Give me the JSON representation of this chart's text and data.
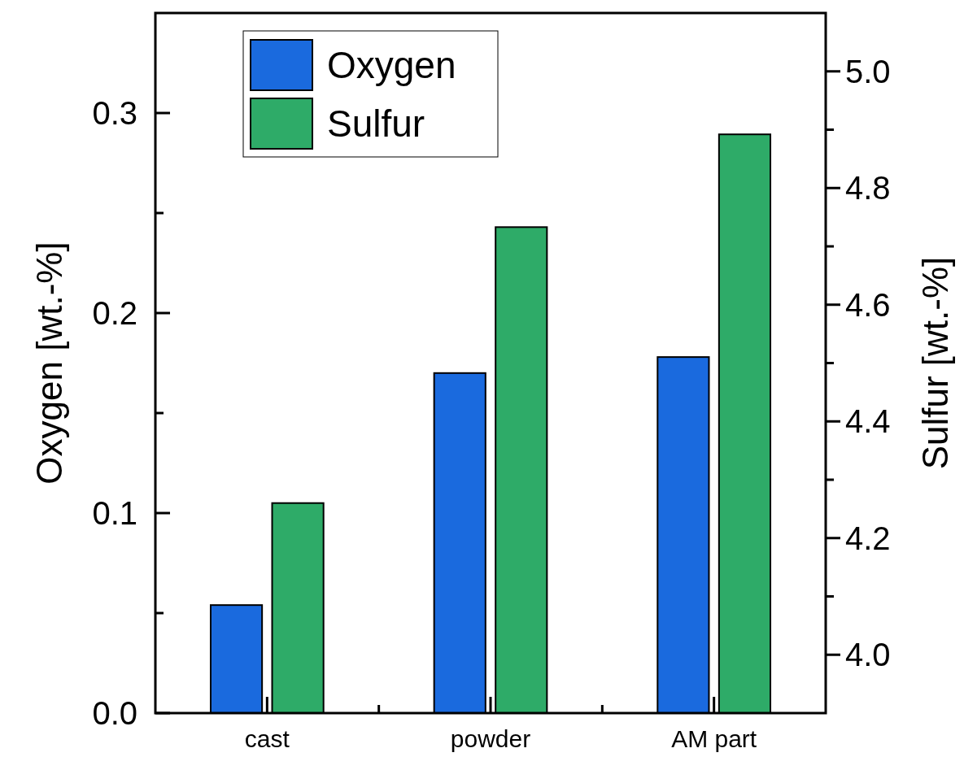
{
  "chart_data": {
    "type": "bar",
    "categories": [
      "cast",
      "powder",
      "AM part"
    ],
    "series": [
      {
        "name": "Oxygen",
        "color": "#1a6ade",
        "values": [
          0.054,
          0.17,
          0.178
        ]
      },
      {
        "name": "Sulfur",
        "color": "#2eab68",
        "values": [
          4.26,
          4.733,
          4.892
        ],
        "axis": "y2"
      }
    ],
    "ylabel": "Oxygen [wt.-%]",
    "y2label": "Sulfur [wt.-%]",
    "ylim": [
      0,
      0.35
    ],
    "yticks": [
      {
        "value": 0,
        "label": "0.0"
      },
      {
        "value": 0.05,
        "label": null
      },
      0.1,
      {
        "value": 0.15,
        "label": null
      },
      0.2,
      {
        "value": 0.25,
        "label": null
      },
      0.3
    ],
    "y2lim": [
      3.9,
      5.1
    ],
    "y2ticks": [
      {
        "value": 4,
        "label": "4.0"
      },
      {
        "value": 4.1,
        "label": null
      },
      4.2,
      {
        "value": 4.3,
        "label": null
      },
      4.4,
      {
        "value": 4.5,
        "label": null
      },
      4.6,
      {
        "value": 4.7,
        "label": null
      },
      4.8,
      {
        "value": 4.9,
        "label": null
      },
      {
        "value": 5,
        "label": "5.0"
      }
    ],
    "legend": "top left",
    "grid": false
  }
}
